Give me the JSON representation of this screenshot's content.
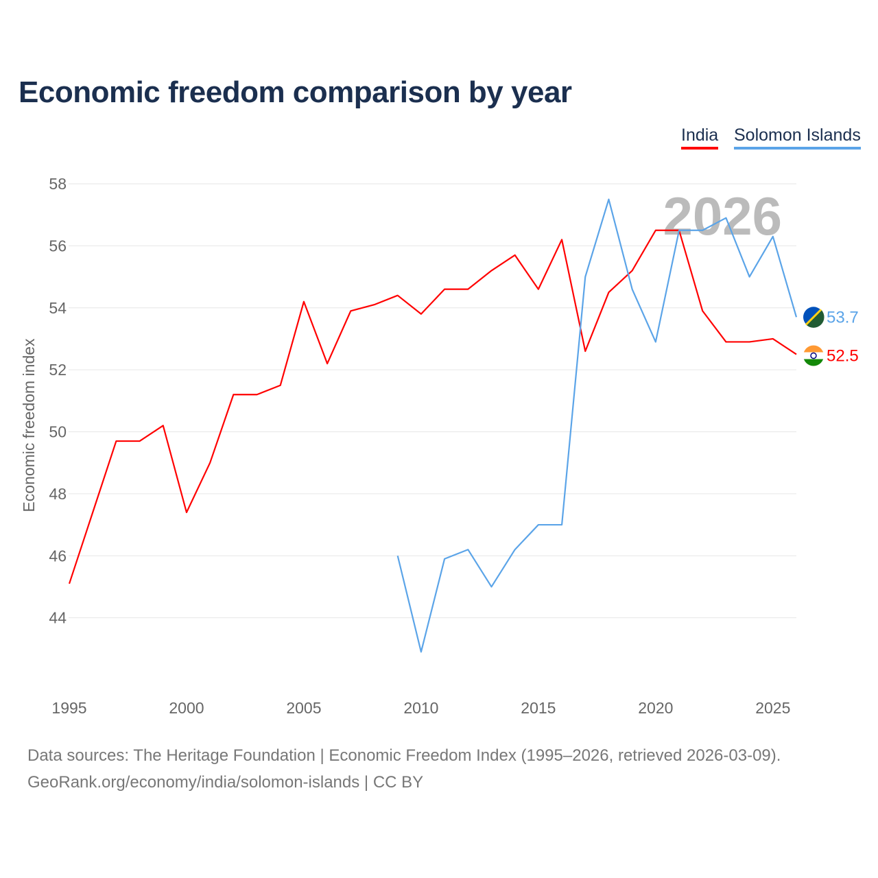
{
  "title": "Economic freedom comparison by year",
  "legend": {
    "india": "India",
    "solomon": "Solomon Islands"
  },
  "footer": {
    "line1": "Data sources: The Heritage Foundation | Economic Freedom Index (1995–2026, retrieved 2026-03-09).",
    "line2": "GeoRank.org/economy/india/solomon-islands | CC BY"
  },
  "colors": {
    "india": "#ff0000",
    "solomon": "#5ba4e8"
  },
  "chart_data": {
    "type": "line",
    "title": "Economic freedom comparison by year",
    "xlabel": "",
    "ylabel": "Economic freedom index",
    "year_watermark": "2026",
    "xlim": [
      1995,
      2026
    ],
    "ylim": [
      42,
      58
    ],
    "xticks": [
      1995,
      2000,
      2005,
      2010,
      2015,
      2020,
      2025
    ],
    "yticks": [
      44,
      46,
      48,
      50,
      52,
      54,
      56,
      58
    ],
    "legend_position": "top-right",
    "series": [
      {
        "name": "India",
        "color": "#ff0000",
        "end_label": "52.5",
        "x": [
          1995,
          1996,
          1997,
          1998,
          1999,
          2000,
          2001,
          2002,
          2003,
          2004,
          2005,
          2006,
          2007,
          2008,
          2009,
          2010,
          2011,
          2012,
          2013,
          2014,
          2015,
          2016,
          2017,
          2018,
          2019,
          2020,
          2021,
          2022,
          2023,
          2024,
          2025,
          2026
        ],
        "y": [
          45.1,
          47.4,
          49.7,
          49.7,
          50.2,
          47.4,
          49.0,
          51.2,
          51.2,
          51.5,
          54.2,
          52.2,
          53.9,
          54.1,
          54.4,
          53.8,
          54.6,
          54.6,
          55.2,
          55.7,
          54.6,
          56.2,
          52.6,
          54.5,
          55.2,
          56.5,
          56.5,
          53.9,
          52.9,
          52.9,
          53.0,
          52.5
        ]
      },
      {
        "name": "Solomon Islands",
        "color": "#5ba4e8",
        "end_label": "53.7",
        "x": [
          2009,
          2010,
          2011,
          2012,
          2013,
          2014,
          2015,
          2016,
          2017,
          2018,
          2019,
          2020,
          2021,
          2022,
          2023,
          2024,
          2025,
          2026
        ],
        "y": [
          46.0,
          42.9,
          45.9,
          46.2,
          45.0,
          46.2,
          47.0,
          47.0,
          55.0,
          57.5,
          54.6,
          52.9,
          56.5,
          56.5,
          56.9,
          55.0,
          56.3,
          53.7
        ]
      }
    ]
  }
}
